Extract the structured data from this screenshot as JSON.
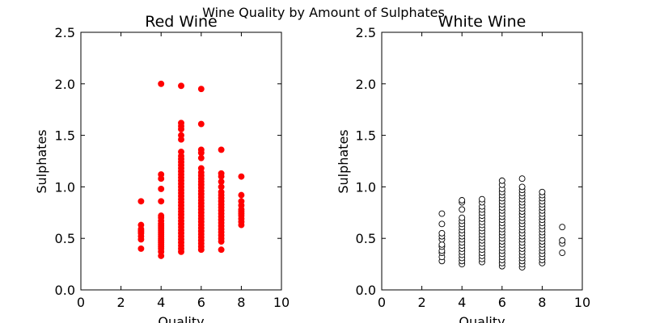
{
  "suptitle": "Wine Quality by Amount of Sulphates",
  "chart_data": [
    {
      "type": "scatter",
      "title": "Red Wine",
      "xlabel": "Quality",
      "ylabel": "Sulphates",
      "xlim": [
        0,
        10
      ],
      "ylim": [
        0,
        2.5
      ],
      "xticks": [
        "0",
        "2",
        "4",
        "6",
        "8",
        "10"
      ],
      "yticks": [
        "0.0",
        "0.5",
        "1.0",
        "1.5",
        "2.0",
        "2.5"
      ],
      "marker": {
        "fill": "#ff0000",
        "edge": "#ff0000"
      },
      "grid": false,
      "points": [
        [
          3,
          0.4
        ],
        [
          3,
          0.49
        ],
        [
          3,
          0.52
        ],
        [
          3,
          0.55
        ],
        [
          3,
          0.57
        ],
        [
          3,
          0.59
        ],
        [
          3,
          0.63
        ],
        [
          3,
          0.86
        ],
        [
          4,
          0.33
        ],
        [
          4,
          0.37
        ],
        [
          4,
          0.4
        ],
        [
          4,
          0.42
        ],
        [
          4,
          0.44
        ],
        [
          4,
          0.46
        ],
        [
          4,
          0.48
        ],
        [
          4,
          0.5
        ],
        [
          4,
          0.52
        ],
        [
          4,
          0.54
        ],
        [
          4,
          0.56
        ],
        [
          4,
          0.58
        ],
        [
          4,
          0.6
        ],
        [
          4,
          0.62
        ],
        [
          4,
          0.64
        ],
        [
          4,
          0.67
        ],
        [
          4,
          0.7
        ],
        [
          4,
          0.72
        ],
        [
          4,
          0.86
        ],
        [
          4,
          0.98
        ],
        [
          4,
          1.08
        ],
        [
          4,
          1.12
        ],
        [
          4,
          2.0
        ],
        [
          5,
          0.37
        ],
        [
          5,
          0.4
        ],
        [
          5,
          0.43
        ],
        [
          5,
          0.46
        ],
        [
          5,
          0.49
        ],
        [
          5,
          0.52
        ],
        [
          5,
          0.55
        ],
        [
          5,
          0.58
        ],
        [
          5,
          0.61
        ],
        [
          5,
          0.64
        ],
        [
          5,
          0.67
        ],
        [
          5,
          0.7
        ],
        [
          5,
          0.73
        ],
        [
          5,
          0.76
        ],
        [
          5,
          0.79
        ],
        [
          5,
          0.82
        ],
        [
          5,
          0.85
        ],
        [
          5,
          0.88
        ],
        [
          5,
          0.91
        ],
        [
          5,
          0.94
        ],
        [
          5,
          0.97
        ],
        [
          5,
          1.0
        ],
        [
          5,
          1.03
        ],
        [
          5,
          1.06
        ],
        [
          5,
          1.09
        ],
        [
          5,
          1.12
        ],
        [
          5,
          1.15
        ],
        [
          5,
          1.18
        ],
        [
          5,
          1.21
        ],
        [
          5,
          1.24
        ],
        [
          5,
          1.27
        ],
        [
          5,
          1.3
        ],
        [
          5,
          1.34
        ],
        [
          5,
          1.46
        ],
        [
          5,
          1.5
        ],
        [
          5,
          1.56
        ],
        [
          5,
          1.59
        ],
        [
          5,
          1.62
        ],
        [
          5,
          1.98
        ],
        [
          6,
          0.39
        ],
        [
          6,
          0.42
        ],
        [
          6,
          0.45
        ],
        [
          6,
          0.48
        ],
        [
          6,
          0.51
        ],
        [
          6,
          0.54
        ],
        [
          6,
          0.57
        ],
        [
          6,
          0.6
        ],
        [
          6,
          0.63
        ],
        [
          6,
          0.66
        ],
        [
          6,
          0.69
        ],
        [
          6,
          0.72
        ],
        [
          6,
          0.75
        ],
        [
          6,
          0.78
        ],
        [
          6,
          0.81
        ],
        [
          6,
          0.84
        ],
        [
          6,
          0.87
        ],
        [
          6,
          0.9
        ],
        [
          6,
          0.93
        ],
        [
          6,
          0.96
        ],
        [
          6,
          0.99
        ],
        [
          6,
          1.02
        ],
        [
          6,
          1.05
        ],
        [
          6,
          1.08
        ],
        [
          6,
          1.11
        ],
        [
          6,
          1.14
        ],
        [
          6,
          1.18
        ],
        [
          6,
          1.28
        ],
        [
          6,
          1.33
        ],
        [
          6,
          1.36
        ],
        [
          6,
          1.61
        ],
        [
          6,
          1.95
        ],
        [
          7,
          0.39
        ],
        [
          7,
          0.47
        ],
        [
          7,
          0.5
        ],
        [
          7,
          0.53
        ],
        [
          7,
          0.56
        ],
        [
          7,
          0.59
        ],
        [
          7,
          0.62
        ],
        [
          7,
          0.65
        ],
        [
          7,
          0.68
        ],
        [
          7,
          0.71
        ],
        [
          7,
          0.74
        ],
        [
          7,
          0.77
        ],
        [
          7,
          0.8
        ],
        [
          7,
          0.83
        ],
        [
          7,
          0.86
        ],
        [
          7,
          0.89
        ],
        [
          7,
          0.92
        ],
        [
          7,
          0.95
        ],
        [
          7,
          1.0
        ],
        [
          7,
          1.05
        ],
        [
          7,
          1.1
        ],
        [
          7,
          1.13
        ],
        [
          7,
          1.36
        ],
        [
          8,
          0.63
        ],
        [
          8,
          0.66
        ],
        [
          8,
          0.69
        ],
        [
          8,
          0.72
        ],
        [
          8,
          0.74
        ],
        [
          8,
          0.76
        ],
        [
          8,
          0.78
        ],
        [
          8,
          0.82
        ],
        [
          8,
          0.86
        ],
        [
          8,
          0.92
        ],
        [
          8,
          1.1
        ]
      ]
    },
    {
      "type": "scatter",
      "title": "White Wine",
      "xlabel": "Quality",
      "ylabel": "Sulphates",
      "xlim": [
        0,
        10
      ],
      "ylim": [
        0,
        2.5
      ],
      "xticks": [
        "0",
        "2",
        "4",
        "6",
        "8",
        "10"
      ],
      "yticks": [
        "0.0",
        "0.5",
        "1.0",
        "1.5",
        "2.0",
        "2.5"
      ],
      "marker": {
        "fill": "#ffffff",
        "edge": "#000000"
      },
      "grid": false,
      "points": [
        [
          3,
          0.28
        ],
        [
          3,
          0.32
        ],
        [
          3,
          0.36
        ],
        [
          3,
          0.38
        ],
        [
          3,
          0.42
        ],
        [
          3,
          0.44
        ],
        [
          3,
          0.49
        ],
        [
          3,
          0.52
        ],
        [
          3,
          0.55
        ],
        [
          3,
          0.64
        ],
        [
          3,
          0.74
        ],
        [
          4,
          0.25
        ],
        [
          4,
          0.28
        ],
        [
          4,
          0.31
        ],
        [
          4,
          0.34
        ],
        [
          4,
          0.37
        ],
        [
          4,
          0.4
        ],
        [
          4,
          0.43
        ],
        [
          4,
          0.46
        ],
        [
          4,
          0.49
        ],
        [
          4,
          0.52
        ],
        [
          4,
          0.55
        ],
        [
          4,
          0.58
        ],
        [
          4,
          0.61
        ],
        [
          4,
          0.64
        ],
        [
          4,
          0.67
        ],
        [
          4,
          0.7
        ],
        [
          4,
          0.78
        ],
        [
          4,
          0.85
        ],
        [
          4,
          0.87
        ],
        [
          5,
          0.27
        ],
        [
          5,
          0.3
        ],
        [
          5,
          0.33
        ],
        [
          5,
          0.36
        ],
        [
          5,
          0.39
        ],
        [
          5,
          0.42
        ],
        [
          5,
          0.45
        ],
        [
          5,
          0.48
        ],
        [
          5,
          0.51
        ],
        [
          5,
          0.54
        ],
        [
          5,
          0.57
        ],
        [
          5,
          0.6
        ],
        [
          5,
          0.63
        ],
        [
          5,
          0.66
        ],
        [
          5,
          0.69
        ],
        [
          5,
          0.72
        ],
        [
          5,
          0.75
        ],
        [
          5,
          0.78
        ],
        [
          5,
          0.81
        ],
        [
          5,
          0.85
        ],
        [
          5,
          0.88
        ],
        [
          6,
          0.23
        ],
        [
          6,
          0.26
        ],
        [
          6,
          0.29
        ],
        [
          6,
          0.32
        ],
        [
          6,
          0.35
        ],
        [
          6,
          0.38
        ],
        [
          6,
          0.41
        ],
        [
          6,
          0.44
        ],
        [
          6,
          0.47
        ],
        [
          6,
          0.5
        ],
        [
          6,
          0.53
        ],
        [
          6,
          0.56
        ],
        [
          6,
          0.59
        ],
        [
          6,
          0.62
        ],
        [
          6,
          0.65
        ],
        [
          6,
          0.68
        ],
        [
          6,
          0.71
        ],
        [
          6,
          0.74
        ],
        [
          6,
          0.77
        ],
        [
          6,
          0.8
        ],
        [
          6,
          0.83
        ],
        [
          6,
          0.86
        ],
        [
          6,
          0.89
        ],
        [
          6,
          0.92
        ],
        [
          6,
          0.95
        ],
        [
          6,
          0.98
        ],
        [
          6,
          1.02
        ],
        [
          6,
          1.06
        ],
        [
          7,
          0.22
        ],
        [
          7,
          0.25
        ],
        [
          7,
          0.28
        ],
        [
          7,
          0.31
        ],
        [
          7,
          0.34
        ],
        [
          7,
          0.37
        ],
        [
          7,
          0.4
        ],
        [
          7,
          0.43
        ],
        [
          7,
          0.46
        ],
        [
          7,
          0.49
        ],
        [
          7,
          0.52
        ],
        [
          7,
          0.55
        ],
        [
          7,
          0.58
        ],
        [
          7,
          0.61
        ],
        [
          7,
          0.64
        ],
        [
          7,
          0.67
        ],
        [
          7,
          0.7
        ],
        [
          7,
          0.73
        ],
        [
          7,
          0.76
        ],
        [
          7,
          0.79
        ],
        [
          7,
          0.82
        ],
        [
          7,
          0.85
        ],
        [
          7,
          0.88
        ],
        [
          7,
          0.91
        ],
        [
          7,
          0.94
        ],
        [
          7,
          0.97
        ],
        [
          7,
          1.0
        ],
        [
          7,
          1.08
        ],
        [
          8,
          0.26
        ],
        [
          8,
          0.29
        ],
        [
          8,
          0.32
        ],
        [
          8,
          0.35
        ],
        [
          8,
          0.38
        ],
        [
          8,
          0.41
        ],
        [
          8,
          0.44
        ],
        [
          8,
          0.47
        ],
        [
          8,
          0.5
        ],
        [
          8,
          0.53
        ],
        [
          8,
          0.56
        ],
        [
          8,
          0.59
        ],
        [
          8,
          0.62
        ],
        [
          8,
          0.65
        ],
        [
          8,
          0.68
        ],
        [
          8,
          0.71
        ],
        [
          8,
          0.74
        ],
        [
          8,
          0.77
        ],
        [
          8,
          0.8
        ],
        [
          8,
          0.83
        ],
        [
          8,
          0.86
        ],
        [
          8,
          0.89
        ],
        [
          8,
          0.92
        ],
        [
          8,
          0.95
        ],
        [
          9,
          0.36
        ],
        [
          9,
          0.45
        ],
        [
          9,
          0.48
        ],
        [
          9,
          0.61
        ]
      ]
    }
  ]
}
